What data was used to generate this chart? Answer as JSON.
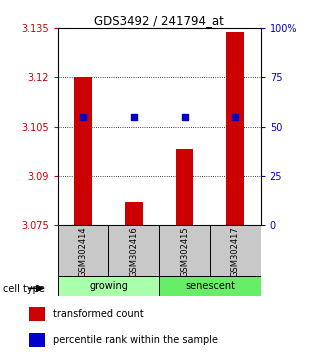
{
  "title": "GDS3492 / 241794_at",
  "samples": [
    "GSM302414",
    "GSM302416",
    "GSM302415",
    "GSM302417"
  ],
  "red_values": [
    3.12,
    3.082,
    3.098,
    3.134
  ],
  "blue_values": [
    3.108,
    3.108,
    3.108,
    3.108
  ],
  "ymin": 3.075,
  "ymax": 3.135,
  "yticks_left": [
    3.075,
    3.09,
    3.105,
    3.12,
    3.135
  ],
  "yticks_right_vals": [
    0,
    25,
    50,
    75,
    100
  ],
  "yticks_right_labels": [
    "0",
    "25",
    "50",
    "75",
    "100%"
  ],
  "bar_color": "#CC0000",
  "dot_color": "#0000CC",
  "left_tick_color": "#CC0000",
  "right_tick_color": "#0000CC",
  "bar_width": 0.35,
  "dot_size": 25,
  "sample_box_color": "#C8C8C8",
  "growing_color": "#AAFFAA",
  "senescent_color": "#66EE66",
  "legend_red_label": "transformed count",
  "legend_blue_label": "percentile rank within the sample",
  "cell_type_label": "cell type"
}
